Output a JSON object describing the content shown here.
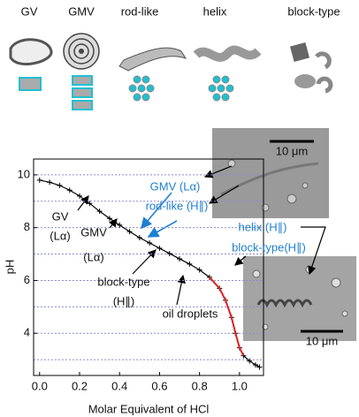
{
  "icon_labels": [
    "GV",
    "GMV",
    "rod-like",
    "helix",
    "block-type"
  ],
  "micrograph_scale": [
    "10 μm",
    "10 μm"
  ],
  "chart_data": {
    "type": "line",
    "xlabel": "Molar Equivalent of HCl",
    "ylabel": "pH",
    "x": [
      0,
      0.05,
      0.1,
      0.15,
      0.2,
      0.25,
      0.3,
      0.35,
      0.4,
      0.45,
      0.5,
      0.55,
      0.6,
      0.65,
      0.7,
      0.75,
      0.8,
      0.85,
      0.9,
      0.93,
      0.96,
      0.98,
      1.0,
      1.02,
      1.05,
      1.08,
      1.1
    ],
    "series": [
      {
        "color": "#000000",
        "values": [
          9.8,
          9.72,
          9.6,
          9.42,
          9.2,
          8.92,
          8.62,
          8.35,
          8.1,
          7.85,
          7.62,
          7.42,
          7.22,
          7.02,
          6.82,
          6.62,
          6.4,
          6.12,
          5.7,
          5.25,
          4.6,
          4.0,
          3.45,
          3.15,
          2.95,
          2.8,
          2.72
        ]
      },
      {
        "color": "#e02020",
        "values": [
          null,
          null,
          null,
          null,
          null,
          null,
          null,
          null,
          null,
          null,
          null,
          null,
          null,
          null,
          null,
          null,
          null,
          6.12,
          5.7,
          5.25,
          4.6,
          4.0,
          3.45,
          3.15,
          null,
          null,
          null
        ]
      }
    ],
    "xlim": [
      -0.03,
      1.12
    ],
    "ylim": [
      2.4,
      10.6
    ],
    "xticks": [
      {
        "value": 0,
        "label": "0.0"
      },
      {
        "value": 0.2,
        "label": "0.2"
      },
      {
        "value": 0.4,
        "label": "0.4"
      },
      {
        "value": 0.6,
        "label": "0.6"
      },
      {
        "value": 0.8,
        "label": "0.8"
      },
      {
        "value": 1,
        "label": "1.0"
      }
    ],
    "yticks": [
      4,
      6,
      8,
      10
    ],
    "grid_y": [
      3,
      4,
      5,
      6,
      7,
      8,
      9,
      10
    ],
    "annotations": [
      "GV",
      "(Lα)",
      "GMV",
      "(Lα)",
      "GMV (Lα)",
      "rod-like (H∥)",
      "helix (H∥)",
      "block-type(H∥)",
      "block-type",
      "(H∥)",
      "oil droplets"
    ]
  }
}
